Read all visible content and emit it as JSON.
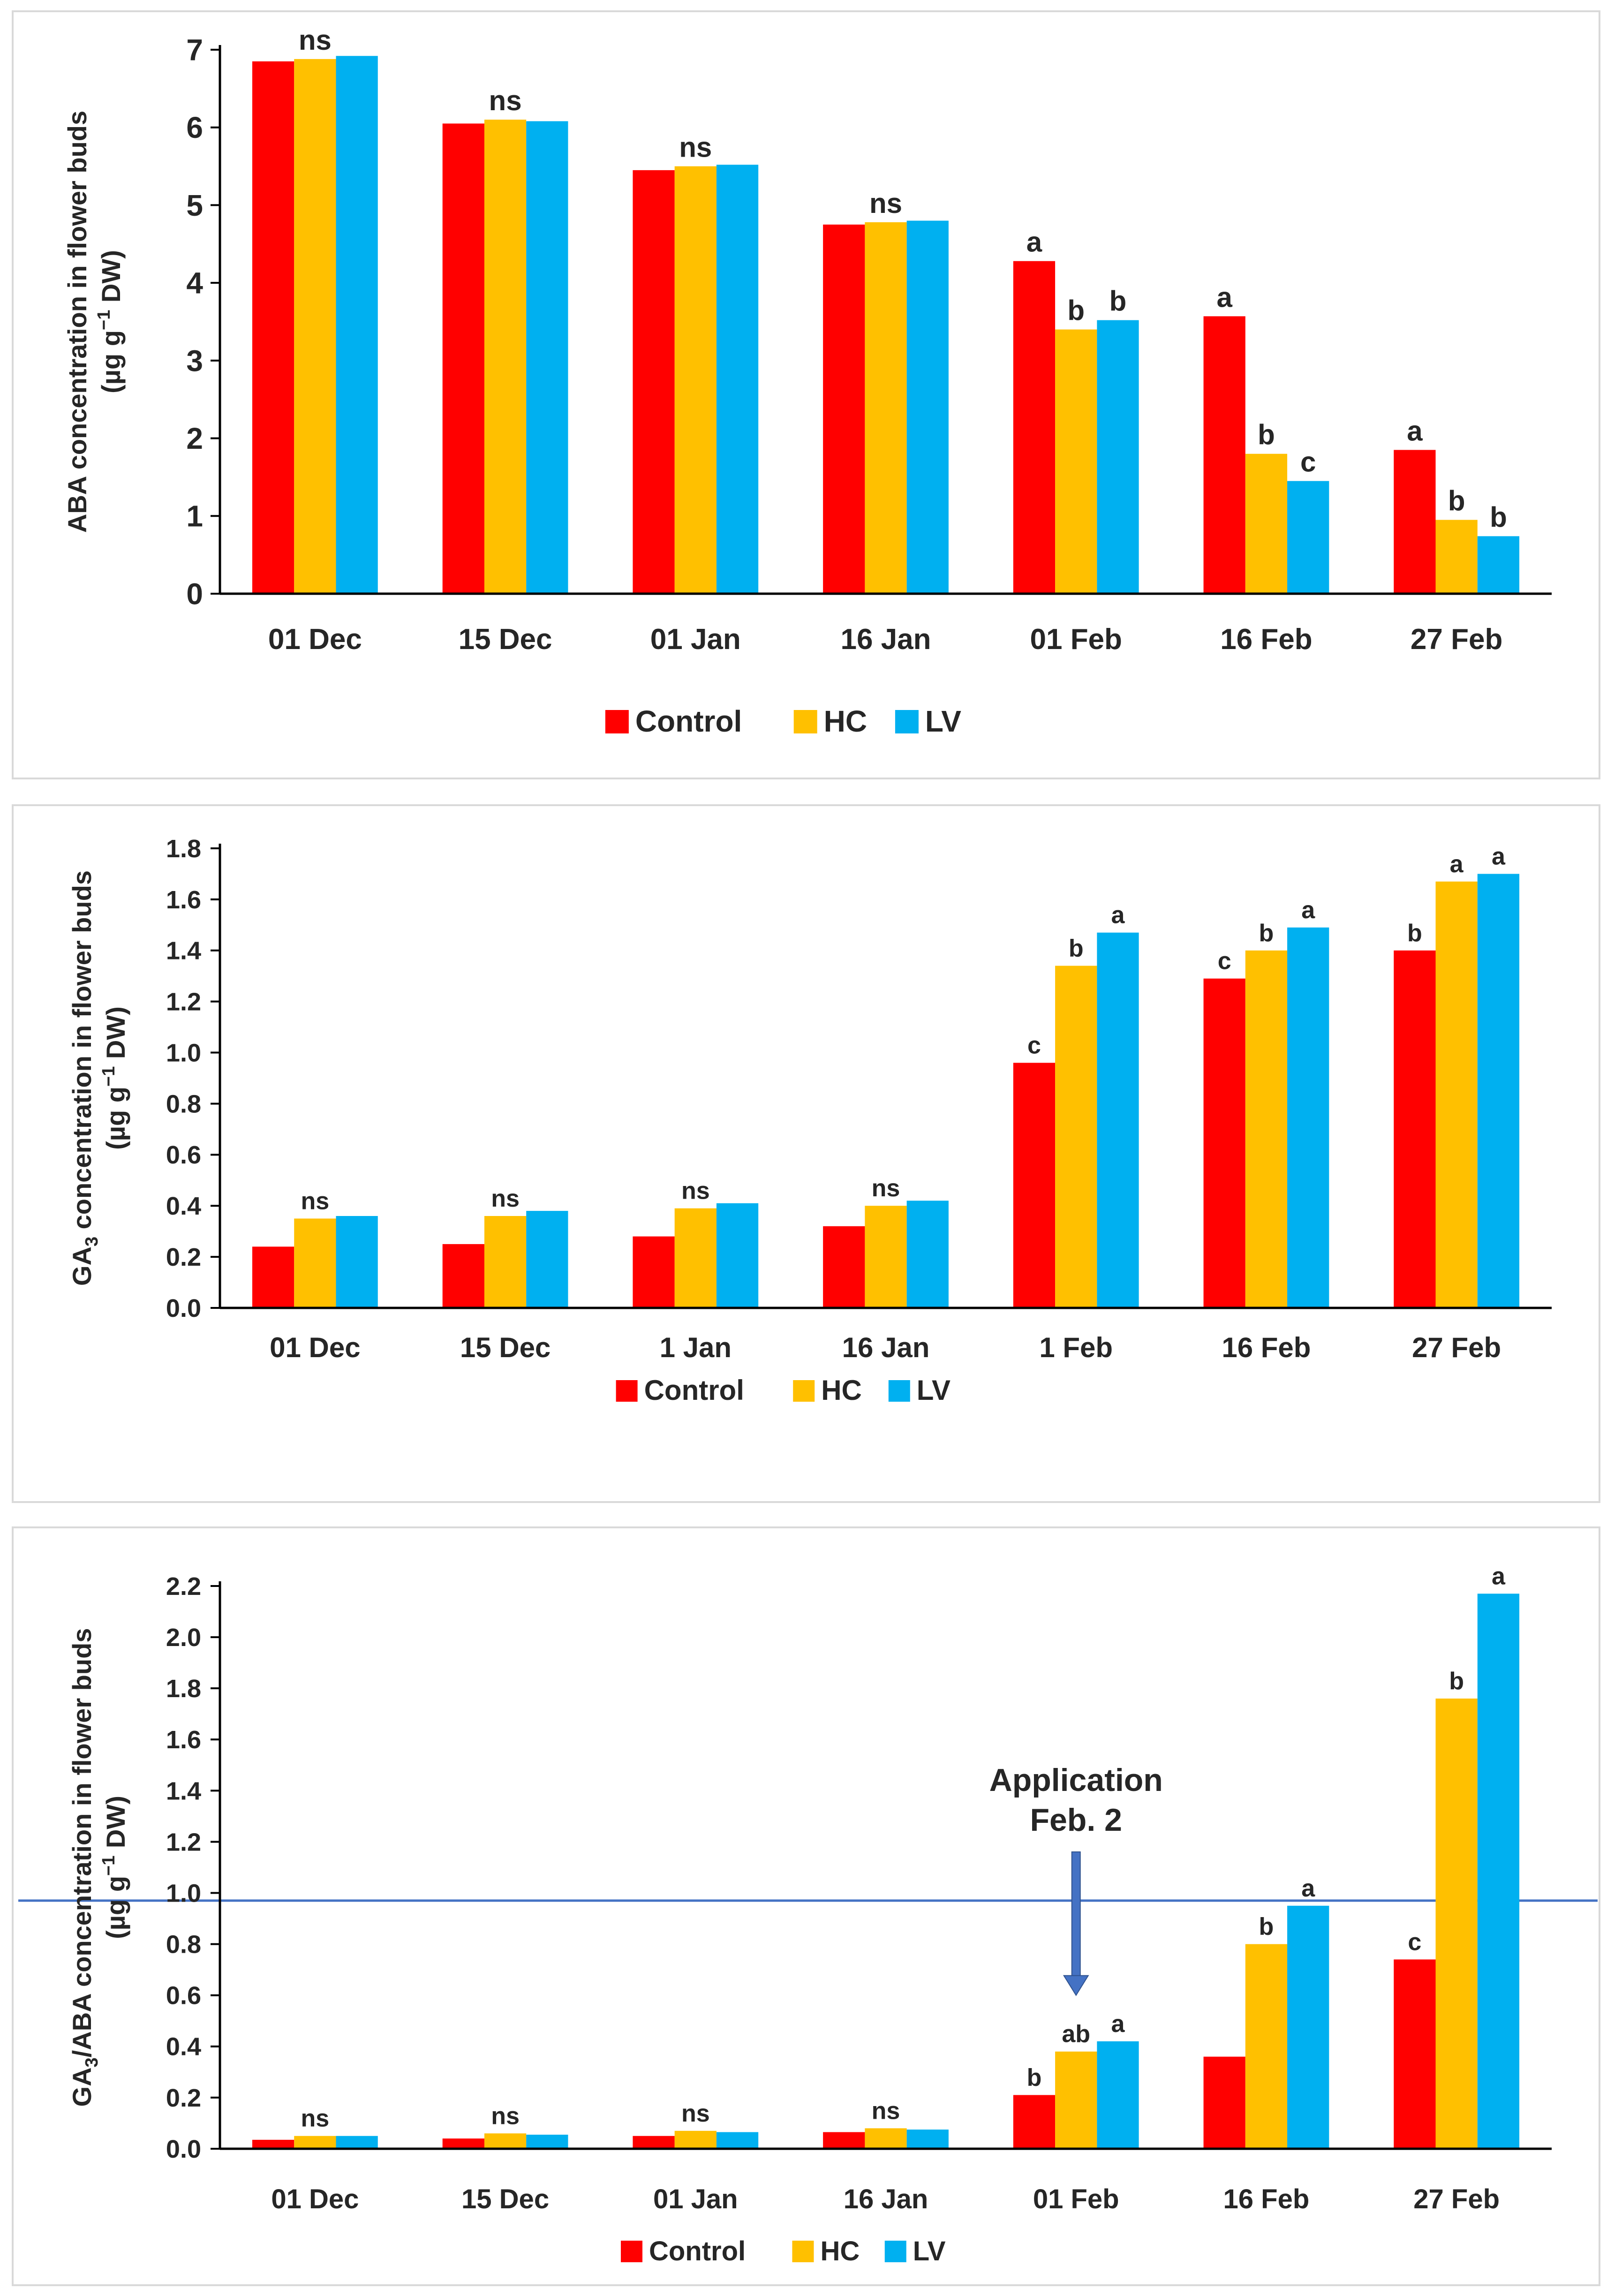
{
  "chart_data": [
    {
      "type": "bar",
      "title": "",
      "ylabel_line1": "ABA concentration in flower buds",
      "ylabel_line2_pre": "(µg g",
      "ylabel_line2_sup": "−1",
      "ylabel_line2_post": " DW)",
      "xlabel": "",
      "categories": [
        "01 Dec",
        "15 Dec",
        "01 Jan",
        "16 Jan",
        "01 Feb",
        "16 Feb",
        "27 Feb"
      ],
      "ylim": [
        0,
        7
      ],
      "yticks": [
        0,
        1,
        2,
        3,
        4,
        5,
        6,
        7
      ],
      "ytick_labels": [
        "0",
        "1",
        "2",
        "3",
        "4",
        "5",
        "6",
        "7"
      ],
      "series": [
        {
          "name": "Control",
          "color": "#ff0000",
          "values": [
            6.85,
            6.05,
            5.45,
            4.75,
            4.28,
            3.57,
            1.85
          ]
        },
        {
          "name": "HC",
          "color": "#ffc000",
          "values": [
            6.88,
            6.1,
            5.5,
            4.78,
            3.4,
            1.8,
            0.95
          ]
        },
        {
          "name": "LV",
          "color": "#00b0f0",
          "values": [
            6.92,
            6.08,
            5.52,
            4.8,
            3.52,
            1.45,
            0.74
          ]
        }
      ],
      "annotations": [
        {
          "category": 0,
          "series": 1,
          "text": "ns"
        },
        {
          "category": 1,
          "series": 1,
          "text": "ns"
        },
        {
          "category": 2,
          "series": 1,
          "text": "ns"
        },
        {
          "category": 3,
          "series": 1,
          "text": "ns"
        },
        {
          "category": 4,
          "series": 0,
          "text": "a"
        },
        {
          "category": 4,
          "series": 1,
          "text": "b"
        },
        {
          "category": 4,
          "series": 2,
          "text": "b"
        },
        {
          "category": 5,
          "series": 0,
          "text": "a"
        },
        {
          "category": 5,
          "series": 1,
          "text": "b"
        },
        {
          "category": 5,
          "series": 2,
          "text": "c"
        },
        {
          "category": 6,
          "series": 0,
          "text": "a"
        },
        {
          "category": 6,
          "series": 1,
          "text": "b"
        },
        {
          "category": 6,
          "series": 2,
          "text": "b"
        }
      ],
      "legend": [
        "Control",
        "HC",
        "LV"
      ],
      "legend_position": "bottom",
      "grid": false
    },
    {
      "type": "bar",
      "title": "",
      "ylabel_line1_pre": "GA",
      "ylabel_line1_sub": "3",
      "ylabel_line1_post": " concentration in flower buds",
      "ylabel_line2_pre": "(µg g",
      "ylabel_line2_sup": "−1",
      "ylabel_line2_post": " DW)",
      "xlabel": "",
      "categories": [
        "01 Dec",
        "15 Dec",
        "1 Jan",
        "16 Jan",
        "1 Feb",
        "16 Feb",
        "27 Feb"
      ],
      "ylim": [
        0,
        1.8
      ],
      "yticks": [
        0,
        0.2,
        0.4,
        0.6,
        0.8,
        1.0,
        1.2,
        1.4,
        1.6,
        1.8
      ],
      "ytick_labels": [
        "0.0",
        "0.2",
        "0.4",
        "0.6",
        "0.8",
        "1.0",
        "1.2",
        "1.4",
        "1.6",
        "1.8"
      ],
      "series": [
        {
          "name": "Control",
          "color": "#ff0000",
          "values": [
            0.24,
            0.25,
            0.28,
            0.32,
            0.96,
            1.29,
            1.4
          ]
        },
        {
          "name": "HC",
          "color": "#ffc000",
          "values": [
            0.35,
            0.36,
            0.39,
            0.4,
            1.34,
            1.4,
            1.67
          ]
        },
        {
          "name": "LV",
          "color": "#00b0f0",
          "values": [
            0.36,
            0.38,
            0.41,
            0.42,
            1.47,
            1.49,
            1.7
          ]
        }
      ],
      "annotations": [
        {
          "category": 0,
          "series": 1,
          "text": "ns"
        },
        {
          "category": 1,
          "series": 1,
          "text": "ns"
        },
        {
          "category": 2,
          "series": 1,
          "text": "ns"
        },
        {
          "category": 3,
          "series": 1,
          "text": "ns"
        },
        {
          "category": 4,
          "series": 0,
          "text": "c"
        },
        {
          "category": 4,
          "series": 1,
          "text": "b"
        },
        {
          "category": 4,
          "series": 2,
          "text": "a"
        },
        {
          "category": 5,
          "series": 0,
          "text": "c"
        },
        {
          "category": 5,
          "series": 1,
          "text": "b"
        },
        {
          "category": 5,
          "series": 2,
          "text": "a"
        },
        {
          "category": 6,
          "series": 0,
          "text": "b"
        },
        {
          "category": 6,
          "series": 1,
          "text": "a"
        },
        {
          "category": 6,
          "series": 2,
          "text": "a"
        }
      ],
      "legend": [
        "Control",
        "HC",
        "LV"
      ],
      "legend_position": "bottom",
      "grid": false
    },
    {
      "type": "bar",
      "title": "",
      "ylabel_line1_pre": "GA",
      "ylabel_line1_sub": "3",
      "ylabel_line1_post": "/ABA concentration in flower buds",
      "ylabel_line2_pre": "(µg g",
      "ylabel_line2_sup": "−1",
      "ylabel_line2_post": " DW)",
      "xlabel": "",
      "categories": [
        "01 Dec",
        "15 Dec",
        "01 Jan",
        "16 Jan",
        "01 Feb",
        "16 Feb",
        "27 Feb"
      ],
      "ylim": [
        0,
        2.2
      ],
      "yticks": [
        0,
        0.2,
        0.4,
        0.6,
        0.8,
        1.0,
        1.2,
        1.4,
        1.6,
        1.8,
        2.0,
        2.2
      ],
      "ytick_labels": [
        "0.0",
        "0.2",
        "0.4",
        "0.6",
        "0.8",
        "1.0",
        "1.2",
        "1.4",
        "1.6",
        "1.8",
        "2.0",
        "2.2"
      ],
      "series": [
        {
          "name": "Control",
          "color": "#ff0000",
          "values": [
            0.035,
            0.04,
            0.05,
            0.065,
            0.21,
            0.36,
            0.74
          ]
        },
        {
          "name": "HC",
          "color": "#ffc000",
          "values": [
            0.05,
            0.06,
            0.07,
            0.08,
            0.38,
            0.8,
            1.76
          ]
        },
        {
          "name": "LV",
          "color": "#00b0f0",
          "values": [
            0.05,
            0.055,
            0.065,
            0.075,
            0.42,
            0.95,
            2.17
          ]
        }
      ],
      "annotations": [
        {
          "category": 0,
          "series": 1,
          "text": "ns"
        },
        {
          "category": 1,
          "series": 1,
          "text": "ns"
        },
        {
          "category": 2,
          "series": 1,
          "text": "ns"
        },
        {
          "category": 3,
          "series": 1,
          "text": "ns"
        },
        {
          "category": 4,
          "series": 0,
          "text": "b"
        },
        {
          "category": 4,
          "series": 1,
          "text": "ab"
        },
        {
          "category": 4,
          "series": 2,
          "text": "a"
        },
        {
          "category": 5,
          "series": 1,
          "text": "b"
        },
        {
          "category": 5,
          "series": 2,
          "text": "a"
        },
        {
          "category": 6,
          "series": 0,
          "text": "c"
        },
        {
          "category": 6,
          "series": 1,
          "text": "b"
        },
        {
          "category": 6,
          "series": 2,
          "text": "a"
        }
      ],
      "reference_line": {
        "value": 0.97,
        "color": "#4472c4"
      },
      "callout": {
        "line1": "Application",
        "line2": "Feb. 2",
        "arrow_color": "#4472c4",
        "arrow_target_value": 0.6
      },
      "legend": [
        "Control",
        "HC",
        "LV"
      ],
      "legend_position": "bottom",
      "grid": false
    }
  ]
}
